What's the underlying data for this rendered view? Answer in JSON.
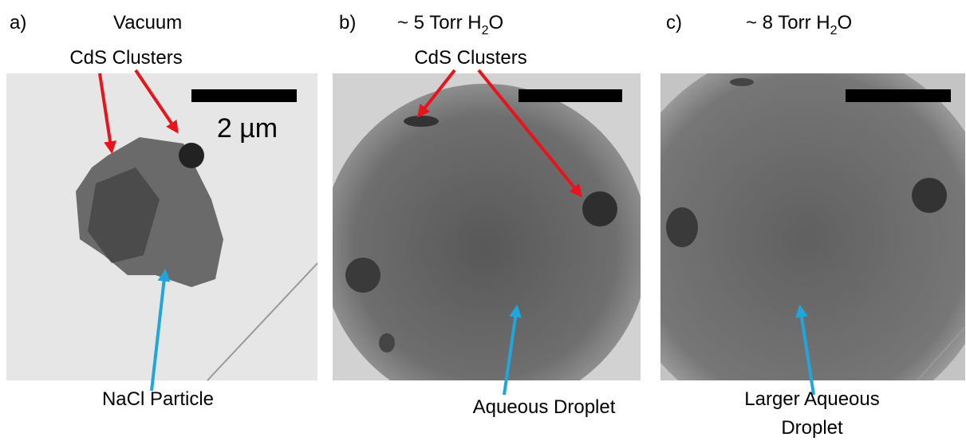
{
  "panels": [
    {
      "label": "a)",
      "title": {
        "main": "Vacuum"
      },
      "annotations": [
        "CdS Clusters",
        "NaCl Particle"
      ],
      "scale_bar": "2 µm"
    },
    {
      "label": "b)",
      "title": {
        "main": "~ 5 Torr H",
        "sub": "2",
        "tail": "O"
      },
      "annotations": [
        "CdS Clusters",
        "Aqueous Droplet"
      ]
    },
    {
      "label": "c)",
      "title": {
        "main": "~ 8 Torr H",
        "sub": "2",
        "tail": "O"
      },
      "annotations": [
        "Larger Aqueous",
        "Droplet"
      ]
    }
  ]
}
